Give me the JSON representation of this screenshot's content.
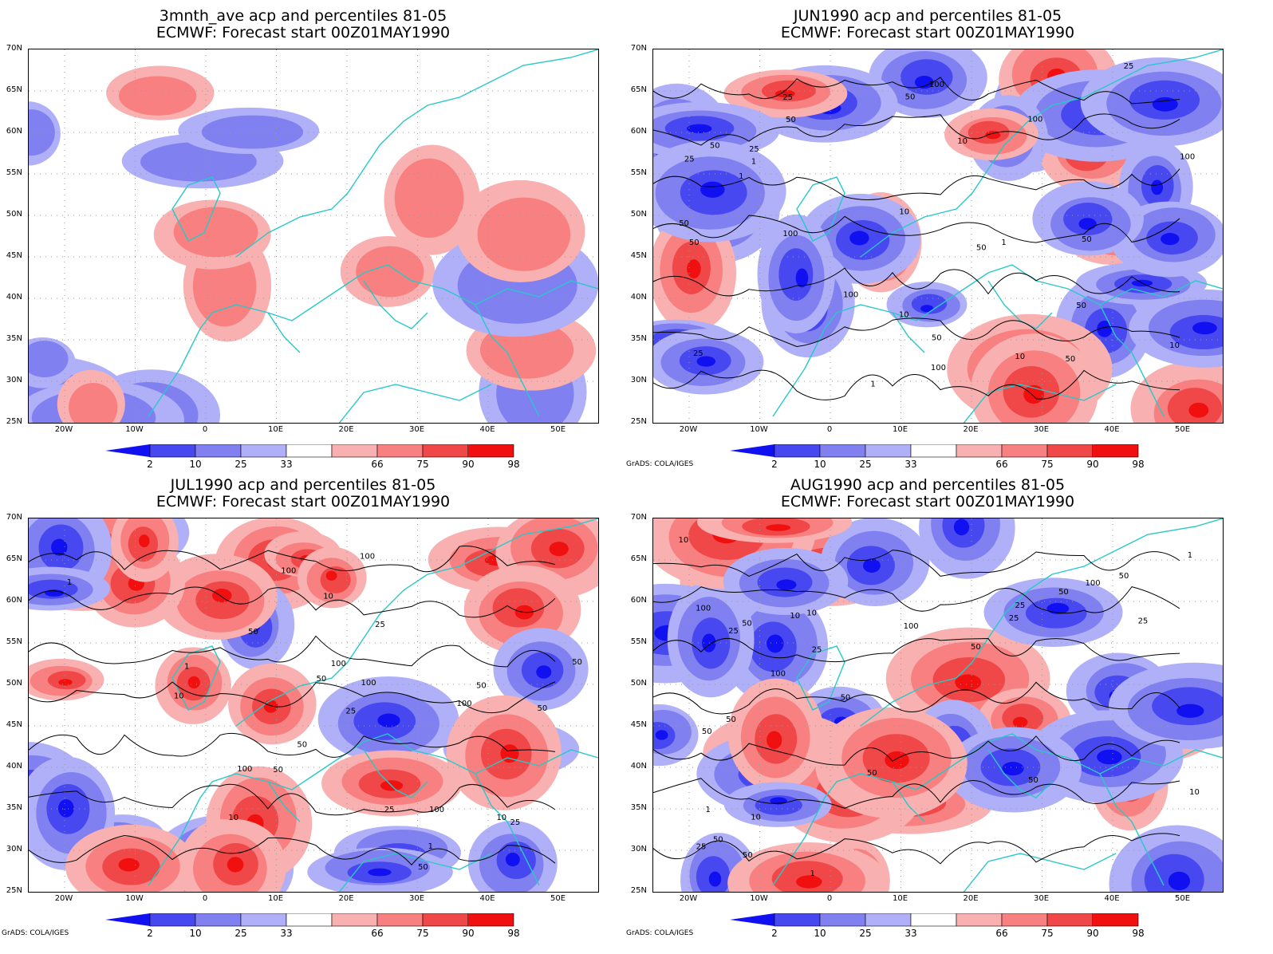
{
  "colors": {
    "coast": "#29c8c8",
    "contour": "#000000",
    "blue_dark": "#1010f0",
    "blue_mid": "#4848f0",
    "blue_light": "#8080f0",
    "blue_pale": "#b0b0f8",
    "red_pale": "#f8b0b0",
    "red_light": "#f88080",
    "red_mid": "#f04848",
    "red_dark": "#f01010"
  },
  "lat_labels": [
    "70N",
    "65N",
    "60N",
    "55N",
    "50N",
    "45N",
    "40N",
    "35N",
    "30N",
    "25N"
  ],
  "lon_labels": [
    "20W",
    "10W",
    "0",
    "10E",
    "20E",
    "30E",
    "40E",
    "50E"
  ],
  "colorbar_labels": [
    "2",
    "10",
    "25",
    "33",
    "66",
    "75",
    "90",
    "98"
  ],
  "credit": "GrADS: COLA/IGES",
  "panels": [
    {
      "title_line1": "3mnth_ave acp and percentiles 81-05",
      "title_line2": "ECMWF: Forecast start 00Z01MAY1990",
      "contour_labels": []
    },
    {
      "title_line1": "JUN1990 acp and percentiles 81-05",
      "title_line2": "ECMWF: Forecast start 00Z01MAY1990",
      "contour_labels": [
        "100",
        "50",
        "50",
        "50",
        "100",
        "50",
        "50",
        "100",
        "100",
        "50",
        "10",
        "50",
        "25",
        "25",
        "10",
        "1",
        "10",
        "1",
        "100",
        "50",
        "25",
        "1",
        "10",
        "50",
        "25",
        "100",
        "50",
        "1",
        "10",
        "25"
      ]
    },
    {
      "title_line1": "JUL1990 acp and percentiles 81-05",
      "title_line2": "ECMWF: Forecast start 00Z01MAY1990",
      "contour_labels": [
        "50",
        "100",
        "50",
        "50",
        "100",
        "100",
        "50",
        "100",
        "100",
        "50",
        "100",
        "50",
        "25",
        "50",
        "10",
        "25",
        "10",
        "1",
        "50",
        "25",
        "100",
        "1",
        "10",
        "1",
        "25",
        "10"
      ]
    },
    {
      "title_line1": "AUG1990 acp and percentiles 81-05",
      "title_line2": "ECMWF: Forecast start 00Z01MAY1990",
      "contour_labels": [
        "50",
        "100",
        "50",
        "50",
        "50",
        "100",
        "100",
        "50",
        "100",
        "25",
        "50",
        "10",
        "25",
        "10",
        "1",
        "10",
        "50",
        "25",
        "10",
        "50",
        "25",
        "50",
        "10",
        "50",
        "25",
        "1",
        "25",
        "50",
        "1"
      ]
    }
  ]
}
